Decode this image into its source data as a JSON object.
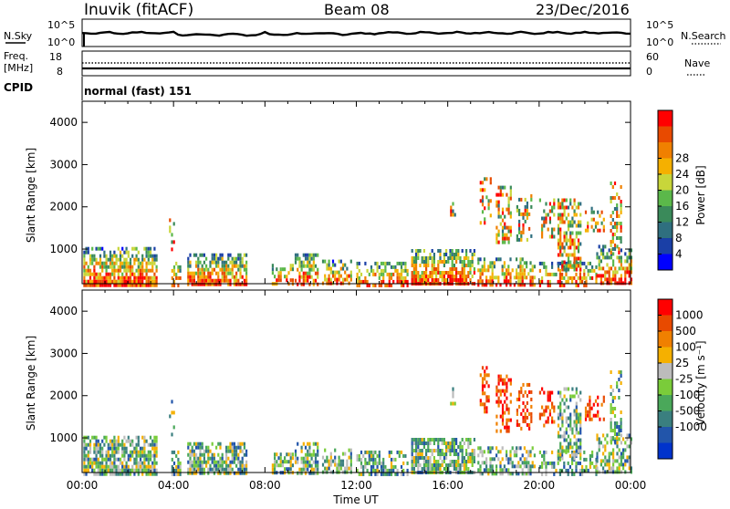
{
  "header": {
    "station": "Inuvik (fitACF)",
    "beam": "Beam 08",
    "date": "23/Dec/2016"
  },
  "labels": {
    "nsky": "N.Sky",
    "freq": "Freq.",
    "freq_unit": "[MHz]",
    "cpid": "CPID",
    "nsearch": "N.Search",
    "nave": "Nave",
    "cpid_value": "normal (fast) 151"
  },
  "ticks": {
    "noise_left": [
      "10^5",
      "10^0"
    ],
    "noise_right": [
      "10^5",
      "10^0"
    ],
    "freq_left": [
      "18",
      "8"
    ],
    "nave_right": [
      "60",
      "0"
    ]
  },
  "chart_data": [
    {
      "type": "heatmap",
      "name": "power",
      "ylabel": "Slant Range [km]",
      "xlabel": "",
      "yticks": [
        "1000",
        "2000",
        "3000",
        "4000"
      ],
      "ylim": [
        180,
        4500
      ],
      "xlim_hours": [
        0,
        24
      ],
      "colorbar": {
        "label": "Power [dB]",
        "ticks": [
          "4",
          "8",
          "12",
          "16",
          "20",
          "24",
          "28"
        ],
        "colors": [
          "#0000ff",
          "#1a3fa6",
          "#2f6f7f",
          "#3a8a5a",
          "#5bb84a",
          "#c8d63a",
          "#f5b000",
          "#f08000",
          "#e84a00",
          "#ff0000"
        ]
      }
    },
    {
      "type": "heatmap",
      "name": "velocity",
      "ylabel": "Slant Range [km]",
      "xlabel": "Time UT",
      "yticks": [
        "1000",
        "2000",
        "3000",
        "4000"
      ],
      "ylim": [
        180,
        4500
      ],
      "xlim_hours": [
        0,
        24
      ],
      "xticks": [
        "00:00",
        "04:00",
        "08:00",
        "12:00",
        "16:00",
        "20:00",
        "00:00"
      ],
      "colorbar": {
        "label": "Velocity [m s⁻¹]",
        "ticks": [
          "1000",
          "500",
          "100",
          "25",
          "-25",
          "-100",
          "-500",
          "-1000"
        ],
        "colors": [
          "#0033cc",
          "#2255aa",
          "#3a7f7f",
          "#4aa85a",
          "#7acc3a",
          "#bcbcbc",
          "#f5b000",
          "#f08000",
          "#e84a00",
          "#ff0000"
        ]
      }
    }
  ]
}
